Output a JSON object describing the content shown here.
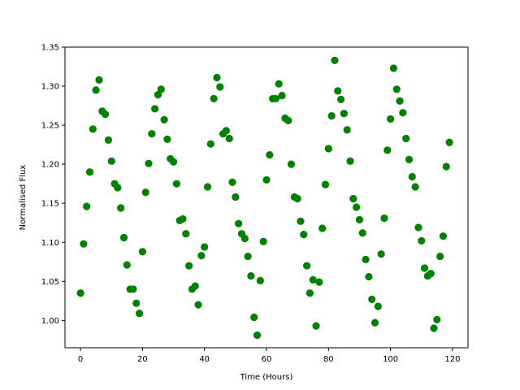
{
  "chart_data": {
    "type": "scatter",
    "title": "",
    "xlabel": "Time (Hours)",
    "ylabel": "Normalised Flux",
    "xlim": [
      -5,
      125
    ],
    "ylim": [
      0.965,
      1.35
    ],
    "xticks": [
      0,
      20,
      40,
      60,
      80,
      100,
      120
    ],
    "xtick_labels": [
      "0",
      "20",
      "40",
      "60",
      "80",
      "100",
      "120"
    ],
    "yticks": [
      1.0,
      1.05,
      1.1,
      1.15,
      1.2,
      1.25,
      1.3,
      1.35
    ],
    "ytick_labels": [
      "1.00",
      "1.05",
      "1.10",
      "1.15",
      "1.20",
      "1.25",
      "1.30",
      "1.35"
    ],
    "grid": false,
    "marker_color": "#008000",
    "series": [
      {
        "x": [
          0,
          1,
          2,
          3,
          4,
          5,
          6,
          7,
          8,
          9,
          10,
          11,
          12,
          13,
          14,
          15,
          16,
          17,
          18,
          19,
          20,
          21,
          22,
          23,
          24,
          25,
          26,
          27,
          28,
          29,
          30,
          31,
          32,
          33,
          34,
          35,
          36,
          37,
          38,
          39,
          40,
          41,
          42,
          43,
          44,
          45,
          46,
          47,
          48,
          49,
          50,
          51,
          52,
          53,
          54,
          55,
          56,
          57,
          58,
          59,
          60,
          61,
          62,
          63,
          64,
          65,
          66,
          67,
          68,
          69,
          70,
          71,
          72,
          73,
          74,
          75,
          76,
          77,
          78,
          79,
          80,
          81,
          82,
          83,
          84,
          85,
          86,
          87,
          88,
          89,
          90,
          91,
          92,
          93,
          94,
          95,
          96,
          97,
          98,
          99,
          100,
          101,
          102,
          103,
          104,
          105,
          106,
          107,
          108,
          109,
          110,
          111,
          112,
          113,
          114,
          115,
          116,
          117,
          118,
          119
        ],
        "y": [
          1.035,
          1.098,
          1.146,
          1.19,
          1.245,
          1.295,
          1.308,
          1.268,
          1.264,
          1.231,
          1.204,
          1.175,
          1.17,
          1.144,
          1.106,
          1.071,
          1.04,
          1.04,
          1.022,
          1.009,
          1.088,
          1.164,
          1.201,
          1.239,
          1.271,
          1.289,
          1.296,
          1.257,
          1.232,
          1.207,
          1.203,
          1.175,
          1.128,
          1.13,
          1.111,
          1.07,
          1.04,
          1.044,
          1.02,
          1.083,
          1.094,
          1.171,
          1.226,
          1.284,
          1.311,
          1.299,
          1.239,
          1.243,
          1.233,
          1.177,
          1.158,
          1.124,
          1.111,
          1.105,
          1.082,
          1.057,
          1.004,
          0.981,
          1.051,
          1.101,
          1.18,
          1.212,
          1.284,
          1.284,
          1.303,
          1.288,
          1.259,
          1.256,
          1.2,
          1.158,
          1.156,
          1.127,
          1.11,
          1.07,
          1.035,
          1.052,
          0.993,
          1.049,
          1.118,
          1.174,
          1.22,
          1.262,
          1.333,
          1.294,
          1.283,
          1.265,
          1.244,
          1.204,
          1.156,
          1.145,
          1.129,
          1.112,
          1.078,
          1.056,
          1.027,
          0.997,
          1.018,
          1.085,
          1.131,
          1.218,
          1.258,
          1.323,
          1.296,
          1.281,
          1.266,
          1.233,
          1.206,
          1.184,
          1.171,
          1.119,
          1.102,
          1.067,
          1.057,
          1.06,
          0.99,
          1.001,
          1.082,
          1.108,
          1.197,
          1.228
        ]
      }
    ]
  }
}
